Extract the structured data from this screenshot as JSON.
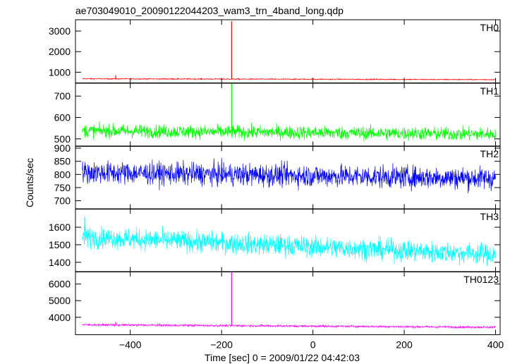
{
  "chart_data": {
    "type": "line",
    "title": "ae703049010_20090122044203_wam3_trn_4band_long.qdp",
    "ylabel": "Counts/sec",
    "xlabel": "Time [sec] 0 = 2009/01/22 04:42:03",
    "xlim": [
      -520,
      410
    ],
    "xticks": [
      -400,
      -200,
      0,
      200,
      400
    ],
    "xtick_labels": [
      "−400",
      "−200",
      "0",
      "200",
      "400"
    ],
    "x_start": -505,
    "x_end": 400,
    "panels": [
      {
        "name": "TH0",
        "color": "#ff0000",
        "ylim": [
          480,
          3550
        ],
        "yticks": [
          1000,
          2000,
          3000
        ],
        "ytick_labels": [
          "1000",
          "2000",
          "3000"
        ],
        "baseline": 680,
        "baseline_end": 640,
        "noise": 18,
        "spikes": [
          {
            "x": -178,
            "y": 3480
          },
          {
            "x": -432,
            "y": 850
          }
        ]
      },
      {
        "name": "TH1",
        "color": "#00ff00",
        "ylim": [
          465,
          760
        ],
        "yticks": [
          500,
          600,
          700
        ],
        "ytick_labels": [
          "500",
          "600",
          "700"
        ],
        "baseline": 538,
        "baseline_end": 522,
        "noise": 22,
        "spikes": [
          {
            "x": -178,
            "y": 760
          }
        ]
      },
      {
        "name": "TH2",
        "color": "#0000ff",
        "ylim": [
          668,
          908
        ],
        "yticks": [
          700,
          750,
          800,
          850,
          900
        ],
        "ytick_labels": [
          "700",
          "750",
          "800",
          "850",
          "900"
        ],
        "baseline": 808,
        "baseline_end": 785,
        "noise": 30,
        "spikes": []
      },
      {
        "name": "TH3",
        "color": "#00ffff",
        "ylim": [
          1345,
          1705
        ],
        "yticks": [
          1400,
          1500,
          1600
        ],
        "ytick_labels": [
          "1400",
          "1500",
          "1600"
        ],
        "baseline": 1545,
        "baseline_end": 1445,
        "noise": 42,
        "spikes": [
          {
            "x": -500,
            "y": 1660
          }
        ]
      },
      {
        "name": "TH0123",
        "color": "#ff00ff",
        "ylim": [
          2950,
          6750
        ],
        "yticks": [
          4000,
          5000,
          6000
        ],
        "ytick_labels": [
          "4000",
          "5000",
          "6000"
        ],
        "baseline": 3550,
        "baseline_end": 3400,
        "noise": 45,
        "spikes": [
          {
            "x": -178,
            "y": 6720
          },
          {
            "x": -432,
            "y": 3720
          }
        ]
      }
    ]
  }
}
